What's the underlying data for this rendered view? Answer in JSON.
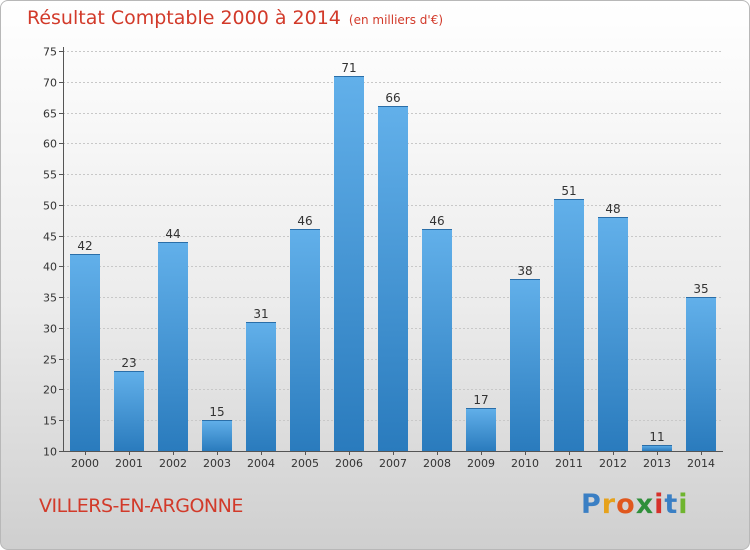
{
  "chart_data": {
    "type": "bar",
    "title": "Résultat Comptable 2000 à 2014",
    "subtitle": "(en milliers d'€)",
    "categories": [
      "2000",
      "2001",
      "2002",
      "2003",
      "2004",
      "2005",
      "2006",
      "2007",
      "2008",
      "2009",
      "2010",
      "2011",
      "2012",
      "2013",
      "2014"
    ],
    "values": [
      42,
      23,
      44,
      15,
      31,
      46,
      71,
      66,
      46,
      17,
      38,
      51,
      48,
      11,
      35
    ],
    "ylim": [
      10,
      75
    ],
    "yticks": [
      10,
      15,
      20,
      25,
      30,
      35,
      40,
      45,
      50,
      55,
      60,
      65,
      70,
      75
    ],
    "xlabel": "",
    "ylabel": "",
    "grid": true
  },
  "commune": "VILLERS-EN-ARGONNE",
  "brand": {
    "letters": [
      "P",
      "r",
      "o",
      "x",
      "i",
      "t",
      "i"
    ],
    "colors": [
      "#3a7fc4",
      "#e6a21b",
      "#e0581e",
      "#2f8f3a",
      "#d6312b",
      "#3a7fc4",
      "#6fb52f"
    ]
  },
  "colors": {
    "bar_top": "#62b0ea",
    "bar_bottom": "#2a7bbd",
    "title": "#d23a2a"
  }
}
